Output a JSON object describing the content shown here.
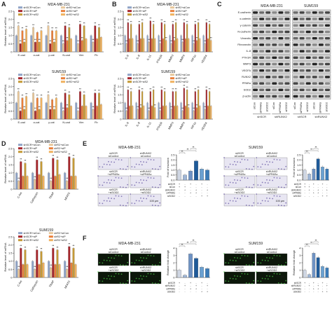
{
  "colors": {
    "shSCR_siCon": "#8fa3c6",
    "shR2_siCon": "#e8c79a",
    "shSCR_siP": "#a6262c",
    "shR2_siP": "#e97f3a",
    "shSCR_siS2": "#c59a36",
    "shR2_siS2": "#f0b15e",
    "e_bars": [
      "#cfd6e3",
      "#9fb6d6",
      "#6f93c4",
      "#1f5b9a",
      "#6aa0d0",
      "#3a7bb8"
    ]
  },
  "panel_labels": {
    "a": "A",
    "b": "B",
    "c": "C",
    "d": "D",
    "e": "E",
    "f": "F"
  },
  "legend_labels": [
    "shSCR+siCon",
    "shR2+siCon",
    "shSCR+siP",
    "shR2+siP",
    "shSCR+siS2",
    "shR2+siS2"
  ],
  "ylabel_mrna": "Relative level of mRNA",
  "chart_data": [
    {
      "id": "A1",
      "type": "bar",
      "title": "MDA-MB-231",
      "categories": [
        "E-cad",
        "α-cat",
        "γ-cat",
        "N-cad",
        "Vim",
        "Fb"
      ],
      "ylim": [
        0,
        2.5
      ],
      "yticks": [
        "0",
        "0.5",
        "1.0",
        "1.5",
        "2.0",
        "2.5"
      ],
      "series": [
        {
          "name": "shSCR+siCon",
          "values": [
            1.0,
            1.0,
            1.0,
            1.0,
            1.0,
            1.0
          ]
        },
        {
          "name": "shR2+siCon",
          "values": [
            1.6,
            1.5,
            1.6,
            0.5,
            0.5,
            0.6
          ]
        },
        {
          "name": "shSCR+siP",
          "values": [
            0.5,
            0.6,
            0.5,
            1.6,
            1.7,
            1.6
          ]
        },
        {
          "name": "shR2+siP",
          "values": [
            1.3,
            1.2,
            1.3,
            0.7,
            0.7,
            0.8
          ]
        },
        {
          "name": "shSCR+siS2",
          "values": [
            0.6,
            0.6,
            0.6,
            1.5,
            1.6,
            1.5
          ]
        },
        {
          "name": "shR2+siS2",
          "values": [
            1.4,
            1.3,
            1.3,
            0.8,
            0.8,
            0.9
          ]
        }
      ]
    },
    {
      "id": "A2",
      "type": "bar",
      "title": "SUM159",
      "categories": [
        "E-cad",
        "α-cat",
        "γ-cat",
        "N-cad",
        "Vim",
        "Fb"
      ],
      "ylim": [
        0,
        2.5
      ],
      "yticks": [
        "0",
        "0.5",
        "1.0",
        "1.5",
        "2.0",
        "2.5"
      ],
      "series": [
        {
          "name": "shSCR+siCon",
          "values": [
            1.0,
            1.0,
            1.0,
            1.0,
            1.0,
            1.0
          ]
        },
        {
          "name": "shR2+siCon",
          "values": [
            1.7,
            1.6,
            1.5,
            0.5,
            0.5,
            0.6
          ]
        },
        {
          "name": "shSCR+siP",
          "values": [
            0.5,
            0.5,
            0.6,
            1.6,
            1.7,
            1.6
          ]
        },
        {
          "name": "shR2+siP",
          "values": [
            1.3,
            1.3,
            1.2,
            0.7,
            0.8,
            0.8
          ]
        },
        {
          "name": "shSCR+siS2",
          "values": [
            0.6,
            0.6,
            0.6,
            1.5,
            1.5,
            1.6
          ]
        },
        {
          "name": "shR2+siS2",
          "values": [
            1.4,
            1.3,
            1.3,
            0.8,
            0.8,
            0.9
          ]
        }
      ]
    },
    {
      "id": "B1",
      "type": "bar",
      "title": "MDA-MB-231",
      "categories": [
        "IL-6",
        "IL-8",
        "IL-11",
        "PTH1R",
        "MMP3",
        "MMP9",
        "HIF1α",
        "VEGFA"
      ],
      "ylim": [
        0,
        2.5
      ],
      "yticks": [
        "0",
        "0.5",
        "1.0",
        "1.5",
        "2.0",
        "2.5"
      ],
      "series": [
        {
          "name": "shSCR+siCon",
          "values": [
            1.0,
            1.0,
            1.0,
            1.0,
            1.0,
            1.0,
            1.0,
            1.0
          ]
        },
        {
          "name": "shR2+siCon",
          "values": [
            0.5,
            0.5,
            0.6,
            0.5,
            0.5,
            0.6,
            0.5,
            0.5
          ]
        },
        {
          "name": "shSCR+siP",
          "values": [
            1.8,
            1.7,
            1.9,
            1.8,
            1.7,
            1.8,
            1.7,
            1.8
          ]
        },
        {
          "name": "shR2+siP",
          "values": [
            0.8,
            0.8,
            0.8,
            0.8,
            0.7,
            0.8,
            0.7,
            0.8
          ]
        },
        {
          "name": "shSCR+siS2",
          "values": [
            1.7,
            1.8,
            1.7,
            1.7,
            1.8,
            1.7,
            1.8,
            1.7
          ]
        },
        {
          "name": "shR2+siS2",
          "values": [
            0.8,
            0.8,
            0.8,
            0.7,
            0.8,
            0.8,
            0.8,
            0.7
          ]
        }
      ]
    },
    {
      "id": "B2",
      "type": "bar",
      "title": "SUM159",
      "categories": [
        "IL-6",
        "IL-8",
        "IL-11",
        "PTH1R",
        "MMP3",
        "MMP9",
        "HIF1α",
        "VEGFA"
      ],
      "ylim": [
        0,
        2.5
      ],
      "yticks": [
        "0",
        "0.5",
        "1.0",
        "1.5",
        "2.0",
        "2.5"
      ],
      "series": [
        {
          "name": "shSCR+siCon",
          "values": [
            1.0,
            1.0,
            1.0,
            1.0,
            1.0,
            1.0,
            1.0,
            1.0
          ]
        },
        {
          "name": "shR2+siCon",
          "values": [
            0.5,
            0.6,
            0.5,
            0.5,
            0.6,
            0.5,
            0.5,
            0.6
          ]
        },
        {
          "name": "shSCR+siP",
          "values": [
            1.8,
            1.8,
            1.7,
            1.8,
            1.7,
            1.9,
            1.7,
            1.8
          ]
        },
        {
          "name": "shR2+siP",
          "values": [
            0.8,
            0.7,
            0.8,
            0.8,
            0.8,
            0.8,
            0.7,
            0.8
          ]
        },
        {
          "name": "shSCR+siS2",
          "values": [
            1.7,
            1.7,
            1.8,
            1.7,
            1.7,
            1.8,
            1.8,
            1.7
          ]
        },
        {
          "name": "shR2+siS2",
          "values": [
            0.8,
            0.8,
            0.7,
            0.8,
            0.8,
            0.7,
            0.8,
            0.8
          ]
        }
      ]
    },
    {
      "id": "D1",
      "type": "bar",
      "title": "MDA-MB-231",
      "categories": [
        "C-fos",
        "Cathepsin",
        "TRAP",
        "NFATC"
      ],
      "ylim": [
        0,
        2.5
      ],
      "yticks": [
        "0",
        "0.5",
        "1.0",
        "1.5",
        "2.0",
        "2.5"
      ],
      "series": [
        {
          "name": "shSCR+siCon",
          "values": [
            1.0,
            1.0,
            1.0,
            1.0
          ]
        },
        {
          "name": "shR2+siCon",
          "values": [
            0.5,
            0.6,
            0.5,
            0.5
          ]
        },
        {
          "name": "shSCR+siP",
          "values": [
            1.7,
            1.8,
            1.9,
            2.0
          ]
        },
        {
          "name": "shR2+siP",
          "values": [
            0.8,
            0.9,
            0.8,
            0.8
          ]
        },
        {
          "name": "shSCR+siS2",
          "values": [
            1.6,
            1.7,
            1.8,
            1.9
          ]
        },
        {
          "name": "shR2+siS2",
          "values": [
            0.8,
            0.8,
            0.9,
            0.8
          ]
        }
      ]
    },
    {
      "id": "D2",
      "type": "bar",
      "title": "SUM159",
      "categories": [
        "C-fos",
        "Cathepsin",
        "TRAP",
        "NFATC"
      ],
      "ylim": [
        0,
        2.5
      ],
      "yticks": [
        "0",
        "0.5",
        "1.0",
        "1.5",
        "2.0",
        "2.5"
      ],
      "series": [
        {
          "name": "shSCR+siCon",
          "values": [
            1.0,
            1.0,
            1.0,
            1.0
          ]
        },
        {
          "name": "shR2+siCon",
          "values": [
            0.5,
            0.5,
            0.6,
            0.5
          ]
        },
        {
          "name": "shSCR+siP",
          "values": [
            1.8,
            1.7,
            1.8,
            1.9
          ]
        },
        {
          "name": "shR2+siP",
          "values": [
            0.8,
            0.8,
            0.8,
            0.9
          ]
        },
        {
          "name": "shSCR+siS2",
          "values": [
            1.7,
            1.6,
            1.7,
            1.8
          ]
        },
        {
          "name": "shR2+siS2",
          "values": [
            0.8,
            0.9,
            0.8,
            0.8
          ]
        }
      ]
    },
    {
      "id": "E1",
      "type": "bar",
      "ylabel": "Fold of invasion",
      "categories": [
        "1",
        "2",
        "3",
        "4",
        "5",
        "6"
      ],
      "ylim": [
        0,
        2.5
      ],
      "yticks": [
        "0.0",
        "0.5",
        "1.0",
        "1.5",
        "2.0",
        "2.5"
      ],
      "values": [
        1.0,
        0.5,
        0.9,
        1.9,
        1.1,
        1.0
      ]
    },
    {
      "id": "E2",
      "type": "bar",
      "ylabel": "Fold of invasion",
      "categories": [
        "1",
        "2",
        "3",
        "4",
        "5",
        "6"
      ],
      "ylim": [
        0,
        2.5
      ],
      "yticks": [
        "0.0",
        "0.5",
        "1.0",
        "1.5",
        "2.0",
        "2.5"
      ],
      "values": [
        1.0,
        0.6,
        1.1,
        2.1,
        1.3,
        1.1
      ]
    },
    {
      "id": "F1",
      "type": "bar",
      "ylabel": "Relative fold change",
      "categories": [
        "1",
        "2",
        "3",
        "4",
        "5",
        "6"
      ],
      "ylim": [
        0,
        4
      ],
      "yticks": [
        "0",
        "1",
        "2",
        "3",
        "4"
      ],
      "values": [
        1.0,
        0.3,
        3.2,
        2.6,
        1.4,
        1.2
      ]
    },
    {
      "id": "F2",
      "type": "bar",
      "ylabel": "Relative fold change",
      "categories": [
        "1",
        "2",
        "3",
        "4",
        "5",
        "6"
      ],
      "ylim": [
        0,
        4
      ],
      "yticks": [
        "0",
        "1",
        "2",
        "3",
        "4"
      ],
      "values": [
        1.0,
        0.4,
        3.3,
        2.7,
        1.5,
        1.3
      ]
    }
  ],
  "blot": {
    "titles": [
      "MDA-MB-231",
      "SUM159"
    ],
    "rows": [
      "E-cadherin",
      "α-catenin",
      "γ-catenin",
      "N-cadherin",
      "Vimentin",
      "Fibronectin",
      "IL-8",
      "PTH1R",
      "MMP3",
      "VEGFA",
      "RUNX2",
      "PPARα",
      "SOD2",
      "β-actin"
    ],
    "lanes": [
      "siCon",
      "siPPARα",
      "siSOD2",
      "siCon",
      "siPPARα",
      "siSOD2"
    ],
    "groups": [
      "shSCR",
      "shRUNX2"
    ]
  },
  "invasion": {
    "titles": [
      "MDA-MB-231",
      "SUM159"
    ],
    "top": [
      "shSCR\nsiControl",
      "shRUNX2\nsiControl"
    ],
    "bottom": [
      "shSCR\n+siPPARα",
      "shRUNX2\n+siPPARα"
    ],
    "row3": [
      "shSCR\n+siSOD2",
      "shRUNX2\n+siSOD2"
    ],
    "scalebar": "100 μm"
  },
  "ros": {
    "titles": [
      "MDA-MB-231",
      "SUM159"
    ],
    "top": [
      "shSCR\nsiControl",
      "shRUNX2\nsiControl"
    ],
    "bottom": [
      "shSCR\n+siSOD2",
      "shRUNX2\n+siSOD2"
    ],
    "scalebar": "100 μm"
  },
  "condition_table_e": {
    "rows": [
      "shSCR",
      "siCon",
      "shRUNX2",
      "siPPARα",
      "siSOD2"
    ],
    "marks": [
      [
        "+",
        "-",
        "+",
        "-",
        "+",
        "-"
      ],
      [
        "+",
        "+",
        "-",
        "-",
        "-",
        "-"
      ],
      [
        "-",
        "+",
        "-",
        "+",
        "-",
        "+"
      ],
      [
        "-",
        "-",
        "+",
        "+",
        "-",
        "-"
      ],
      [
        "-",
        "-",
        "-",
        "-",
        "+",
        "+"
      ]
    ]
  },
  "condition_table_f": {
    "rows": [
      "shSCR",
      "shRUNX2",
      "siPPARα",
      "siSOD2"
    ],
    "marks": [
      [
        "+",
        "-",
        "+",
        "-",
        "+",
        "-"
      ],
      [
        "-",
        "+",
        "-",
        "+",
        "-",
        "+"
      ],
      [
        "-",
        "-",
        "+",
        "+",
        "-",
        "-"
      ],
      [
        "-",
        "-",
        "-",
        "-",
        "+",
        "+"
      ]
    ]
  },
  "significance": "**"
}
